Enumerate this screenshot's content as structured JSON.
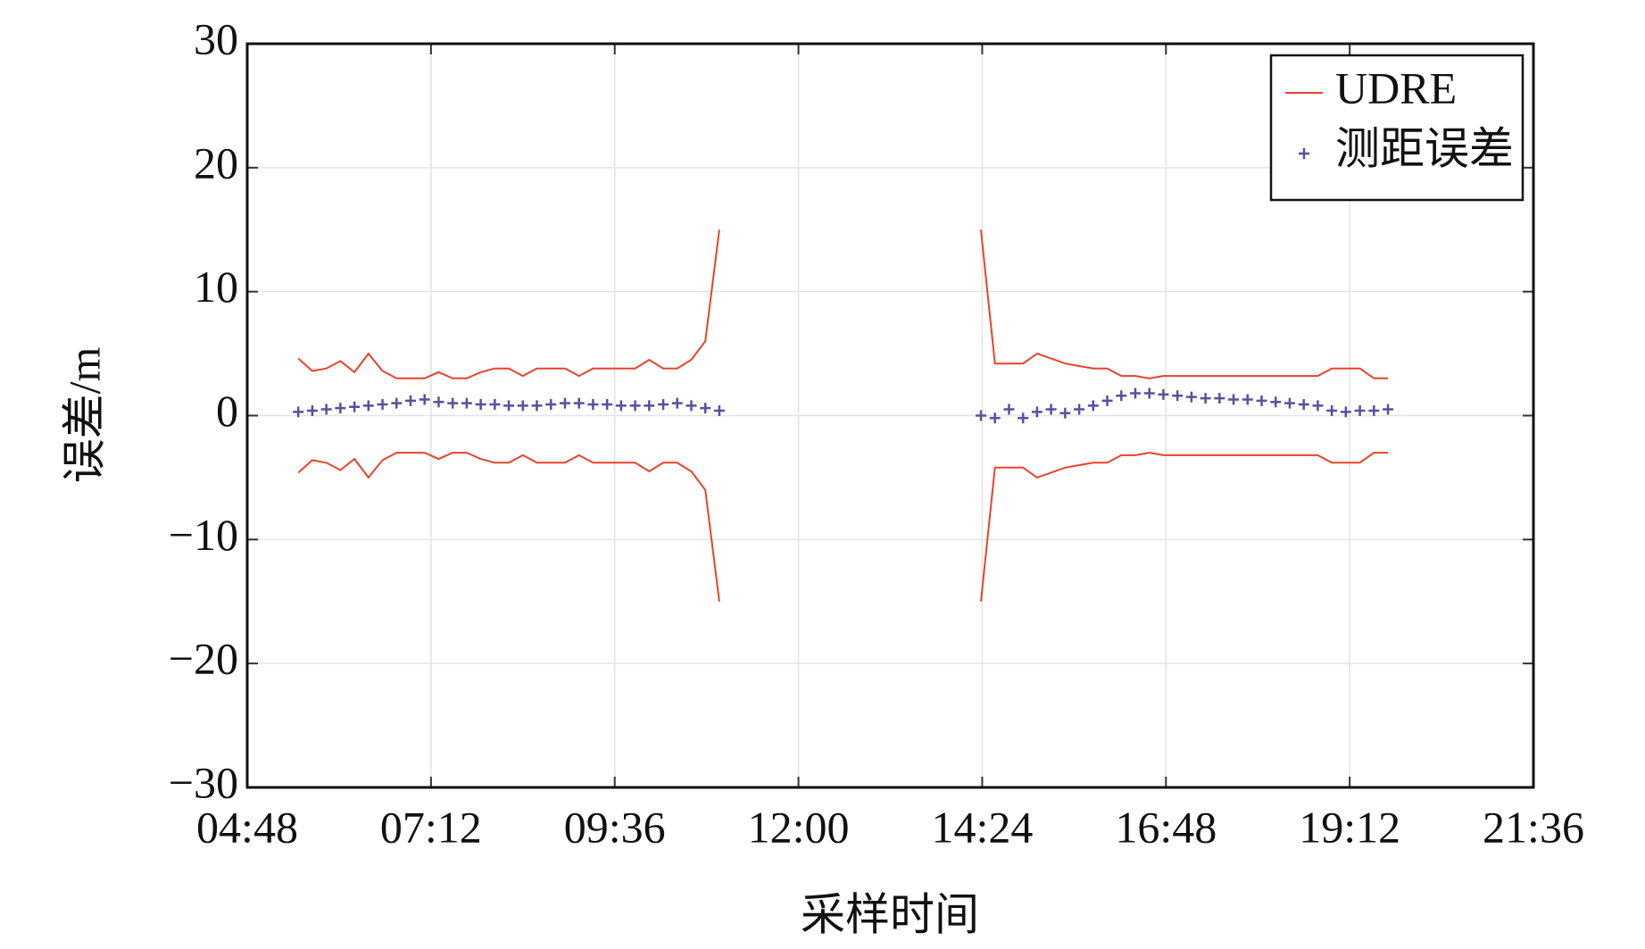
{
  "chart_data": {
    "type": "line",
    "xlabel": "采样时间",
    "ylabel": "误差/m",
    "x": [
      328,
      339,
      350,
      361,
      372,
      383,
      394,
      405,
      416,
      427,
      438,
      449,
      460,
      471,
      482,
      493,
      504,
      515,
      526,
      537,
      548,
      559,
      570,
      581,
      592,
      603,
      614,
      625,
      636,
      647,
      658,
      760,
      863,
      874,
      885,
      896,
      907,
      918,
      929,
      940,
      951,
      962,
      973,
      984,
      995,
      1006,
      1017,
      1028,
      1039,
      1050,
      1061,
      1072,
      1083,
      1094,
      1105,
      1116,
      1127,
      1138,
      1149,
      1160,
      1171,
      1182
    ],
    "series": [
      {
        "name": "UDRE",
        "color": "#e8432b",
        "marker": "line",
        "values": [
          4.6,
          3.6,
          3.8,
          4.4,
          3.5,
          5.0,
          3.6,
          3.0,
          3.0,
          3.0,
          3.5,
          3.0,
          3.0,
          3.5,
          3.8,
          3.8,
          3.2,
          3.8,
          3.8,
          3.8,
          3.2,
          3.8,
          3.8,
          3.8,
          3.8,
          4.5,
          3.8,
          3.8,
          4.5,
          6.0,
          15,
          null,
          15,
          4.2,
          4.2,
          4.2,
          5.0,
          4.6,
          4.2,
          4.0,
          3.8,
          3.8,
          3.2,
          3.2,
          3.0,
          3.2,
          3.2,
          3.2,
          3.2,
          3.2,
          3.2,
          3.2,
          3.2,
          3.2,
          3.2,
          3.2,
          3.2,
          3.8,
          3.8,
          3.8,
          3.0,
          3.0
        ]
      },
      {
        "color": "#e8432b",
        "marker": "line",
        "values": [
          -4.6,
          -3.6,
          -3.8,
          -4.4,
          -3.5,
          -5.0,
          -3.6,
          -3.0,
          -3.0,
          -3.0,
          -3.5,
          -3.0,
          -3.0,
          -3.5,
          -3.8,
          -3.8,
          -3.2,
          -3.8,
          -3.8,
          -3.8,
          -3.2,
          -3.8,
          -3.8,
          -3.8,
          -3.8,
          -4.5,
          -3.8,
          -3.8,
          -4.5,
          -6.0,
          -15,
          null,
          -15,
          -4.2,
          -4.2,
          -4.2,
          -5.0,
          -4.6,
          -4.2,
          -4.0,
          -3.8,
          -3.8,
          -3.2,
          -3.2,
          -3.0,
          -3.2,
          -3.2,
          -3.2,
          -3.2,
          -3.2,
          -3.2,
          -3.2,
          -3.2,
          -3.2,
          -3.2,
          -3.2,
          -3.2,
          -3.8,
          -3.8,
          -3.8,
          -3.0,
          -3.0
        ]
      },
      {
        "name": "测距误差",
        "color": "#5a4fa0",
        "marker": "plus",
        "values": [
          0.3,
          0.4,
          0.5,
          0.6,
          0.7,
          0.8,
          0.9,
          1.0,
          1.2,
          1.3,
          1.1,
          1.0,
          1.0,
          0.9,
          0.9,
          0.8,
          0.8,
          0.8,
          0.9,
          1.0,
          1.0,
          0.9,
          0.9,
          0.8,
          0.8,
          0.8,
          0.9,
          1.0,
          0.8,
          0.6,
          0.4,
          null,
          0,
          -0.2,
          0.5,
          -0.2,
          0.3,
          0.5,
          0.2,
          0.5,
          0.8,
          1.2,
          1.6,
          1.8,
          1.8,
          1.7,
          1.6,
          1.5,
          1.4,
          1.4,
          1.3,
          1.3,
          1.2,
          1.1,
          1.0,
          0.9,
          0.8,
          0.4,
          0.3,
          0.4,
          0.4,
          0.5
        ]
      }
    ],
    "xlim": [
      288,
      1296
    ],
    "xticks": [
      {
        "value": 288,
        "label": "04:48"
      },
      {
        "value": 432,
        "label": "07:12"
      },
      {
        "value": 576,
        "label": "09:36"
      },
      {
        "value": 720,
        "label": "12:00"
      },
      {
        "value": 864,
        "label": "14:24"
      },
      {
        "value": 1008,
        "label": "16:48"
      },
      {
        "value": 1152,
        "label": "19:12"
      },
      {
        "value": 1296,
        "label": "21:36"
      }
    ],
    "ylim": [
      -30,
      30
    ],
    "yticks": [
      {
        "value": -30,
        "label": "−30"
      },
      {
        "value": -20,
        "label": "−20"
      },
      {
        "value": -10,
        "label": "−10"
      },
      0,
      10,
      20,
      30
    ],
    "grid": true,
    "legend": "upper right"
  }
}
